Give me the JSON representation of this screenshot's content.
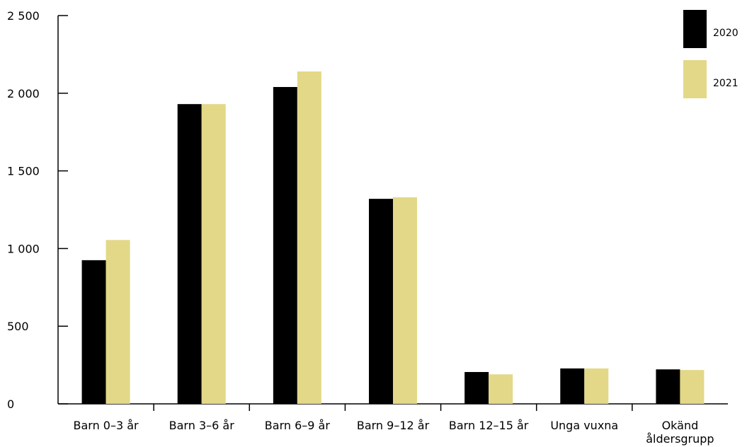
{
  "chart_data": {
    "type": "bar",
    "categories": [
      [
        "Barn 0–3 år"
      ],
      [
        "Barn 3–6 år"
      ],
      [
        "Barn 6–9 år"
      ],
      [
        "Barn 9–12 år"
      ],
      [
        "Barn 12–15 år"
      ],
      [
        "Unga vuxna"
      ],
      [
        "Okänd",
        "åldersgrupp"
      ]
    ],
    "series": [
      {
        "name": "2020",
        "color": "#000000",
        "values": [
          925,
          1930,
          2040,
          1320,
          205,
          228,
          222
        ]
      },
      {
        "name": "2021",
        "color": "#e3d887",
        "values": [
          1055,
          1930,
          2140,
          1330,
          190,
          228,
          218
        ]
      }
    ],
    "yticks": [
      0,
      500,
      1000,
      1500,
      2000,
      2500
    ],
    "ytick_labels": [
      "0",
      "500",
      "1 000",
      "1 500",
      "2 000",
      "2 500"
    ],
    "ylim": [
      0,
      2500
    ],
    "grid": false,
    "legend": "top-right"
  }
}
